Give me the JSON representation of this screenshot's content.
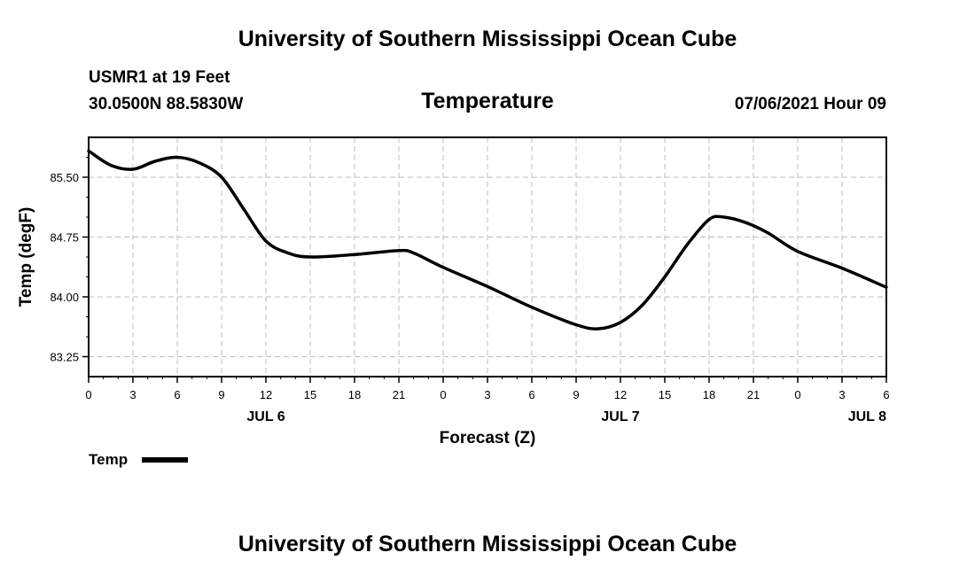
{
  "page": {
    "title_top": "University of Southern Mississippi Ocean Cube",
    "title_bottom": "University of Southern Mississippi Ocean Cube",
    "station": "USMR1 at 19 Feet",
    "coordinates": "30.0500N  88.5830W",
    "date_label": "07/06/2021 Hour 09"
  },
  "colors": {
    "series": "#000000",
    "grid": "#bdbdbd",
    "axis": "#000000"
  },
  "chart_data": {
    "type": "line",
    "title": "Temperature",
    "xlabel": "Forecast (Z)",
    "ylabel": "Temp (degF)",
    "x_unit": "hours since JUL 6 00Z",
    "xlim": [
      0,
      54
    ],
    "ylim": [
      83.0,
      86.0
    ],
    "grid": true,
    "legend_position": "bottom-left",
    "x_ticks": [
      0,
      3,
      6,
      9,
      12,
      15,
      18,
      21,
      24,
      27,
      30,
      33,
      36,
      39,
      42,
      45,
      48,
      51,
      54
    ],
    "x_tick_labels": [
      "0",
      "3",
      "6",
      "9",
      "12",
      "15",
      "18",
      "21",
      "0",
      "3",
      "6",
      "9",
      "12",
      "15",
      "18",
      "21",
      "0",
      "3",
      "6"
    ],
    "y_ticks": [
      83.25,
      84.0,
      84.75,
      85.5
    ],
    "y_tick_labels": [
      "83.25",
      "84.00",
      "84.75",
      "85.50"
    ],
    "day_labels": [
      {
        "x": 12,
        "label": "JUL 6"
      },
      {
        "x": 36,
        "label": "JUL 7"
      },
      {
        "x": 52.7,
        "label": "JUL 8"
      }
    ],
    "series": [
      {
        "name": "Temp",
        "x": [
          0,
          1.5,
          3,
          4.5,
          6,
          7.5,
          9,
          10.5,
          12,
          13.5,
          15,
          18,
          21,
          22,
          24,
          27,
          30,
          33,
          34.5,
          36,
          37.5,
          39,
          40.5,
          42,
          43,
          44.5,
          46,
          48,
          51,
          54
        ],
        "y": [
          85.83,
          85.65,
          85.6,
          85.7,
          85.75,
          85.68,
          85.5,
          85.1,
          84.7,
          84.55,
          84.5,
          84.53,
          84.58,
          84.55,
          84.37,
          84.13,
          83.87,
          83.65,
          83.6,
          83.68,
          83.9,
          84.25,
          84.65,
          84.97,
          85.0,
          84.93,
          84.8,
          84.57,
          84.36,
          84.12
        ]
      }
    ]
  }
}
